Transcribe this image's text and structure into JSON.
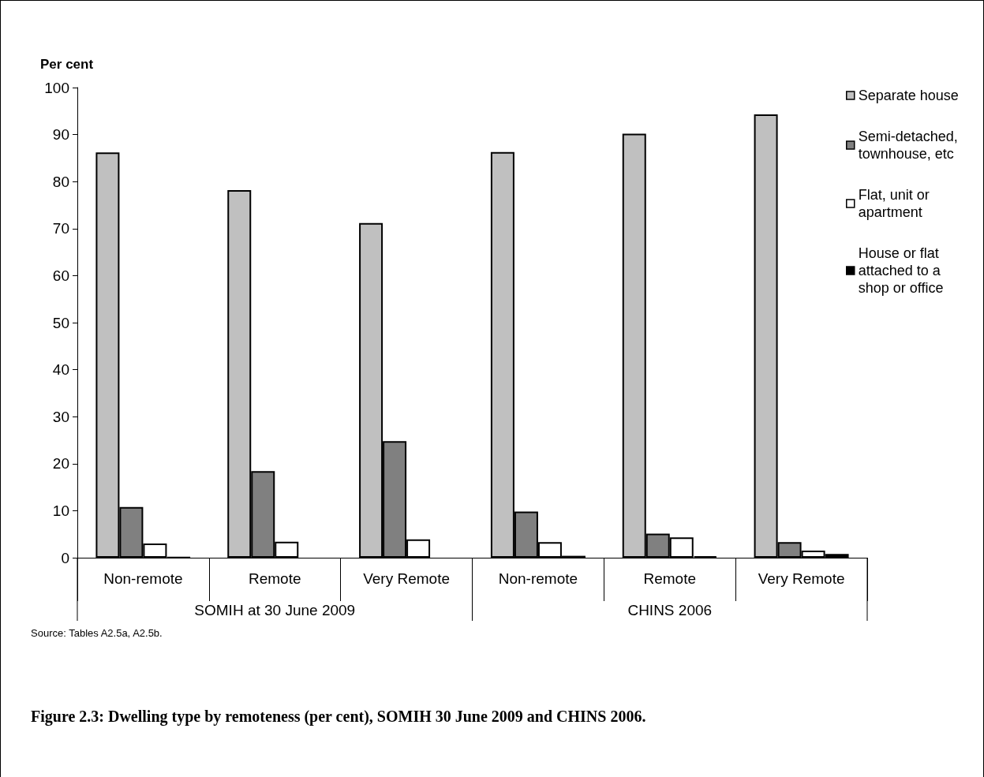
{
  "chart_data": {
    "type": "bar",
    "title": "Figure 2.3: Dwelling type by remoteness (per cent), SOMIH 30 June 2009 and CHINS 2006.",
    "ylabel": "Per cent",
    "categories": [
      "Non-remote",
      "Remote",
      "Very Remote",
      "Non-remote",
      "Remote",
      "Very Remote"
    ],
    "series": [
      {
        "name": "Separate house",
        "color": "#c0c0c0",
        "values": [
          86.2,
          78.2,
          71.2,
          86.3,
          90.2,
          94.3
        ]
      },
      {
        "name": "Semi-detached, townhouse, etc",
        "color": "#808080",
        "values": [
          10.8,
          18.4,
          24.8,
          9.8,
          5.1,
          3.3
        ]
      },
      {
        "name": "Flat, unit or apartment",
        "color": "#ffffff",
        "values": [
          3.0,
          3.4,
          3.9,
          3.3,
          4.3,
          1.5
        ]
      },
      {
        "name": "House or flat attached to a shop or office",
        "color": "#000000",
        "values": [
          0.1,
          null,
          null,
          0.4,
          0.3,
          0.8
        ]
      }
    ],
    "annotations": [
      "SOMIH at 30 June 2009",
      "CHINS 2006",
      "Source: Tables A2.5a, A2.5b."
    ],
    "ylim": [
      0,
      100
    ],
    "yticks": [
      0,
      10,
      20,
      30,
      40,
      50,
      60,
      70,
      80,
      90,
      100
    ],
    "grid": false,
    "legend": "right"
  }
}
